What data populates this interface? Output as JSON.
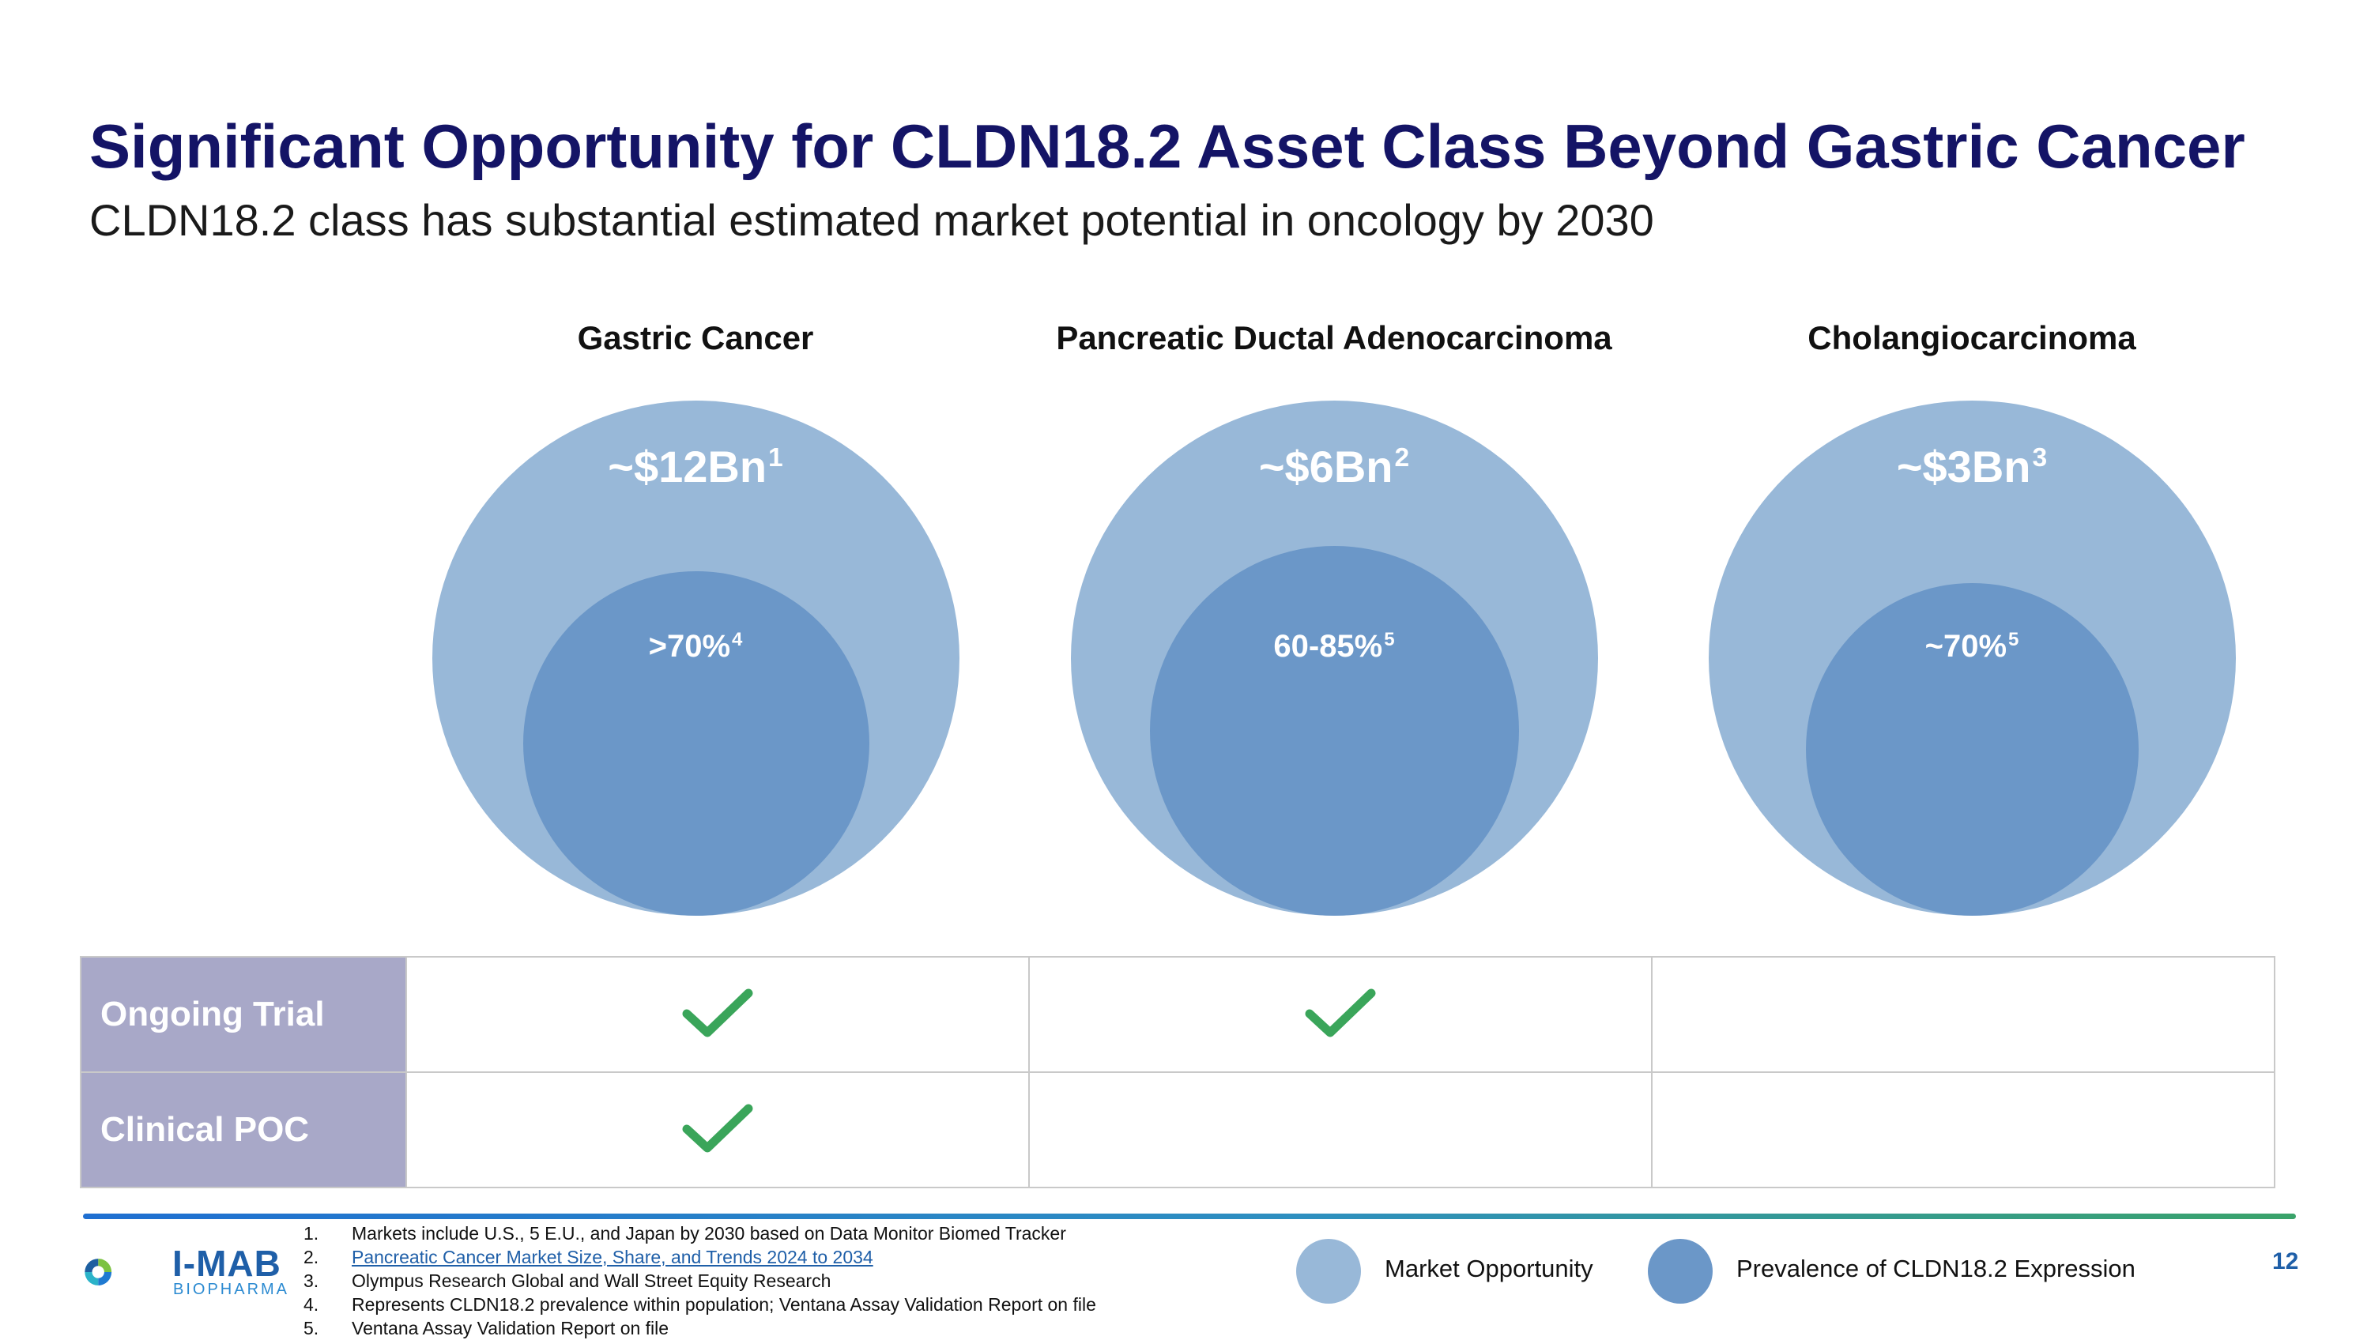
{
  "title": "Significant Opportunity for CLDN18.2 Asset Class Beyond Gastric Cancer",
  "subtitle": "CLDN18.2 class has substantial estimated market potential in oncology by 2030",
  "columns": [
    {
      "heading": "Gastric Cancer",
      "market": "~$12Bn",
      "market_ref": "1",
      "prevalence": ">70%",
      "prevalence_ref": "4"
    },
    {
      "heading": "Pancreatic Ductal Adenocarcinoma",
      "market": "~$6Bn",
      "market_ref": "2",
      "prevalence": "60-85%",
      "prevalence_ref": "5"
    },
    {
      "heading": "Cholangiocarcinoma",
      "market": "~$3Bn",
      "market_ref": "3",
      "prevalence": "~70%",
      "prevalence_ref": "5"
    }
  ],
  "table": {
    "rows": [
      {
        "label": "Ongoing Trial",
        "checks": [
          true,
          true,
          false
        ]
      },
      {
        "label": "Clinical POC",
        "checks": [
          true,
          false,
          false
        ]
      }
    ]
  },
  "footnotes": [
    {
      "num": "1.",
      "text": "Markets include U.S., 5 E.U., and Japan by 2030 based on Data Monitor Biomed Tracker"
    },
    {
      "num": "2.",
      "text": "Pancreatic Cancer Market Size, Share, and Trends 2024 to 2034"
    },
    {
      "num": "3.",
      "text": "Olympus Research Global and Wall Street Equity Research"
    },
    {
      "num": "4.",
      "text": "Represents CLDN18.2 prevalence within population; Ventana Assay Validation Report on file"
    },
    {
      "num": "5.",
      "text": "Ventana Assay Validation Report on file"
    }
  ],
  "legend": {
    "market": "Market Opportunity",
    "prevalence": "Prevalence of CLDN18.2 Expression"
  },
  "logo": {
    "name": "I-MAB",
    "sub": "BIOPHARMA"
  },
  "page_number": "12",
  "colors": {
    "title": "#141466",
    "market_circle": "#98b8d8",
    "prevalence_circle": "#6b97c8",
    "row_label_bg": "#a8a8c8",
    "check": "#3aa55a",
    "link": "#1f5fa8"
  },
  "icons": {
    "check": "check-icon"
  }
}
